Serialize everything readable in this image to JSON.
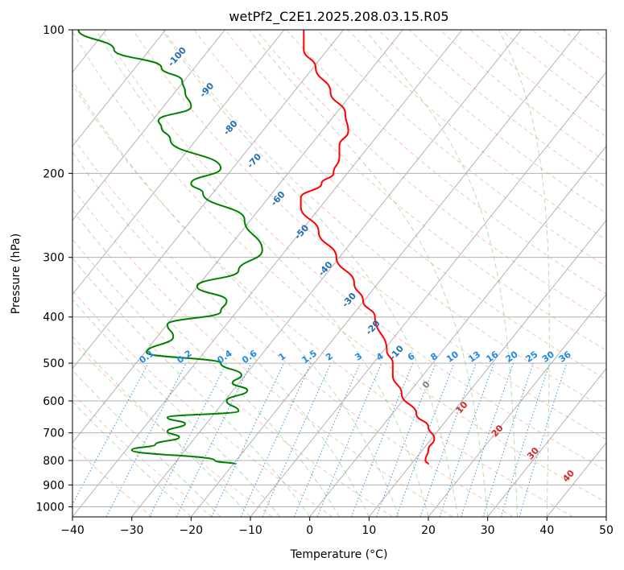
{
  "chart_data": {
    "type": "line",
    "title": "wetPf2_C2E1.2025.208.03.15.R05",
    "xlabel": "Temperature (°C)",
    "ylabel": "Pressure (hPa)",
    "x_range": [
      -40,
      50
    ],
    "y_range": [
      100,
      1050
    ],
    "y_scale": "log",
    "x_ticks": [
      "−40",
      "−30",
      "−20",
      "−10",
      "0",
      "10",
      "20",
      "30",
      "40",
      "50"
    ],
    "y_ticks": [
      "100",
      "200",
      "300",
      "400",
      "500",
      "600",
      "700",
      "800",
      "900",
      "1000"
    ],
    "grid": true,
    "skew": true,
    "colors": {
      "temperature": "#ff0000",
      "dewpoint": "#008000",
      "isotherm": "#9a9a9a",
      "dry_adiabat": "#f4a582",
      "moist_adiabat": "#7fbf7b",
      "mixing_ratio": "#1e88e5",
      "blue_label": "#1f6fb2",
      "red_label": "#d62728"
    },
    "series": [
      {
        "name": "",
        "role": "temperature",
        "points": [
          [
            20.0,
            815
          ],
          [
            19.5,
            800
          ],
          [
            20.0,
            760
          ],
          [
            21.0,
            720
          ],
          [
            20.0,
            680
          ],
          [
            18.0,
            640
          ],
          [
            15.5,
            580
          ],
          [
            14.0,
            530
          ],
          [
            14.0,
            500
          ],
          [
            13.0,
            470
          ],
          [
            11.0,
            400
          ],
          [
            9.0,
            370
          ],
          [
            7.5,
            340
          ],
          [
            4.5,
            300
          ],
          [
            1.5,
            265
          ],
          [
            -1.5,
            235
          ],
          [
            -1.5,
            225
          ],
          [
            2.0,
            210
          ],
          [
            4.0,
            200
          ],
          [
            5.0,
            185
          ],
          [
            5.0,
            175
          ],
          [
            6.5,
            163
          ],
          [
            6.0,
            150
          ],
          [
            3.5,
            135
          ],
          [
            1.0,
            120
          ],
          [
            -1.0,
            110
          ],
          [
            -1.0,
            100
          ]
        ]
      },
      {
        "name": "",
        "role": "dewpoint",
        "points": [
          [
            -12.5,
            815
          ],
          [
            -16.0,
            800
          ],
          [
            -30.0,
            760
          ],
          [
            -26.0,
            740
          ],
          [
            -22.0,
            715
          ],
          [
            -24.0,
            695
          ],
          [
            -21.0,
            670
          ],
          [
            -24.0,
            650
          ],
          [
            -12.0,
            630
          ],
          [
            -14.0,
            600
          ],
          [
            -10.5,
            570
          ],
          [
            -13.0,
            550
          ],
          [
            -11.5,
            530
          ],
          [
            -15.0,
            500
          ],
          [
            -27.5,
            475
          ],
          [
            -23.0,
            440
          ],
          [
            -24.0,
            415
          ],
          [
            -15.0,
            390
          ],
          [
            -14.0,
            370
          ],
          [
            -19.0,
            345
          ],
          [
            -12.0,
            320
          ],
          [
            -8.0,
            290
          ],
          [
            -11.0,
            250
          ],
          [
            -18.0,
            220
          ],
          [
            -20.0,
            210
          ],
          [
            -15.0,
            195
          ],
          [
            -23.5,
            170
          ],
          [
            -25.0,
            160
          ],
          [
            -25.5,
            155
          ],
          [
            -20.0,
            145
          ],
          [
            -21.0,
            135
          ],
          [
            -21.5,
            128
          ],
          [
            -25.0,
            120
          ],
          [
            -33.0,
            110
          ],
          [
            -39.0,
            100
          ]
        ]
      }
    ],
    "annotations": {
      "dry_adiabats": [
        "-100",
        "-90",
        "-80",
        "-70",
        "-60",
        "-50",
        "-40",
        "-30",
        "-20",
        "-10",
        "0",
        "10",
        "20",
        "30",
        "40"
      ],
      "mixing_ratios": [
        "0.1",
        "0.2",
        "0.4",
        "0.6",
        "1",
        "1.5",
        "2",
        "3",
        "4",
        "6",
        "8",
        "10",
        "13",
        "16",
        "20",
        "25",
        "30",
        "36"
      ]
    }
  }
}
